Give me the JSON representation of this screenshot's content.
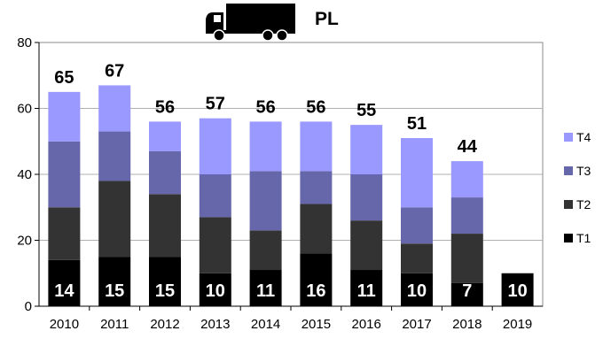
{
  "chart_data": {
    "type": "bar",
    "stacked": true,
    "title": "PL",
    "title_icon": "truck-icon",
    "categories": [
      "2010",
      "2011",
      "2012",
      "2013",
      "2014",
      "2015",
      "2016",
      "2017",
      "2018",
      "2019"
    ],
    "series": [
      {
        "name": "T1",
        "color": "#000000",
        "values": [
          14,
          15,
          15,
          10,
          11,
          16,
          11,
          10,
          7,
          10
        ]
      },
      {
        "name": "T2",
        "color": "#333333",
        "values": [
          16,
          23,
          19,
          17,
          12,
          15,
          15,
          9,
          15,
          0
        ]
      },
      {
        "name": "T3",
        "color": "#6666aa",
        "values": [
          20,
          15,
          13,
          13,
          18,
          10,
          14,
          11,
          11,
          0
        ]
      },
      {
        "name": "T4",
        "color": "#9999ff",
        "values": [
          15,
          14,
          9,
          17,
          15,
          15,
          15,
          21,
          11,
          0
        ]
      }
    ],
    "totals": [
      65,
      67,
      56,
      57,
      56,
      56,
      55,
      51,
      44,
      null
    ],
    "bottom_labels": [
      "14",
      "15",
      "15",
      "10",
      "11",
      "16",
      "11",
      "10",
      "7",
      "10"
    ],
    "yticks": [
      "0",
      "20",
      "40",
      "60",
      "80"
    ],
    "ylim": [
      0,
      80
    ],
    "grid": true,
    "legend_position": "right"
  }
}
